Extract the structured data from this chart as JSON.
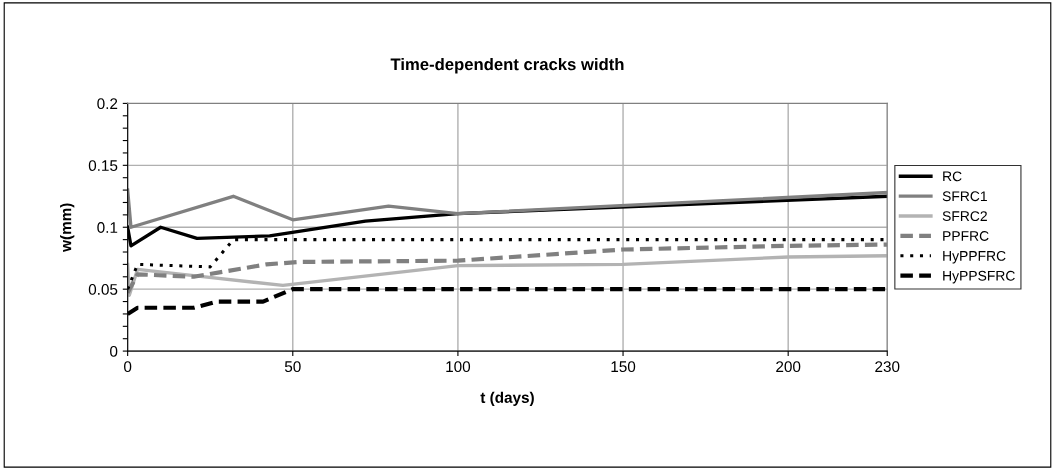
{
  "chart_data": {
    "type": "line",
    "title": "Time-dependent cracks width",
    "xlabel": "t (days)",
    "ylabel": "w(mm)",
    "xlim": [
      0,
      230
    ],
    "xticks": [
      0,
      50,
      100,
      150,
      200,
      230
    ],
    "ylim": [
      0,
      0.2
    ],
    "yticks": [
      0,
      {
        "value": 0.01,
        "label": null
      },
      {
        "value": 0.02,
        "label": null
      },
      {
        "value": 0.03,
        "label": null
      },
      {
        "value": 0.04,
        "label": null
      },
      0.05,
      {
        "value": 0.06,
        "label": null
      },
      {
        "value": 0.07,
        "label": null
      },
      {
        "value": 0.08,
        "label": null
      },
      {
        "value": 0.09,
        "label": null
      },
      0.1,
      {
        "value": 0.11,
        "label": null
      },
      {
        "value": 0.12,
        "label": null
      },
      {
        "value": 0.13,
        "label": null
      },
      {
        "value": 0.14,
        "label": null
      },
      0.15,
      {
        "value": 0.16,
        "label": null
      },
      {
        "value": 0.17,
        "label": null
      },
      {
        "value": 0.18,
        "label": null
      },
      {
        "value": 0.19,
        "label": null
      },
      0.2
    ],
    "grid": true,
    "legend": "right",
    "marker": "none",
    "series": [
      {
        "name": "RC",
        "color": "#000000",
        "line_style": "solid",
        "x": [
          0,
          1,
          10,
          21,
          43,
          72,
          100,
          230
        ],
        "values": [
          0.1,
          0.085,
          0.1,
          0.091,
          0.093,
          0.105,
          0.111,
          0.125
        ]
      },
      {
        "name": "SFRC1",
        "color": "#808080",
        "line_style": "solid",
        "x": [
          0,
          1,
          32,
          50,
          79,
          100,
          230
        ],
        "values": [
          0.13,
          0.1,
          0.125,
          0.106,
          0.117,
          0.111,
          0.128
        ]
      },
      {
        "name": "SFRC2",
        "color": "#b3b3b3",
        "line_style": "solid",
        "x": [
          0,
          0.5,
          3,
          20,
          47,
          100,
          150,
          200,
          230
        ],
        "values": [
          0.07,
          0.045,
          0.066,
          0.061,
          0.053,
          0.069,
          0.07,
          0.076,
          0.077
        ]
      },
      {
        "name": "PPFRC",
        "color": "#808080",
        "line_style": "dashed",
        "x": [
          0,
          3,
          20,
          42,
          52,
          100,
          150,
          200,
          230
        ],
        "values": [
          0.047,
          0.062,
          0.06,
          0.07,
          0.072,
          0.073,
          0.082,
          0.085,
          0.086
        ]
      },
      {
        "name": "HyPPFRC",
        "color": "#000000",
        "line_style": "dotted",
        "x": [
          0,
          3,
          25,
          32,
          230
        ],
        "values": [
          0.05,
          0.07,
          0.068,
          0.09,
          0.09
        ]
      },
      {
        "name": "HyPPSFRC",
        "color": "#000000",
        "line_style": "dashed",
        "x": [
          0,
          3,
          20,
          27,
          41,
          50,
          230
        ],
        "values": [
          0.03,
          0.035,
          0.035,
          0.04,
          0.04,
          0.05,
          0.05
        ]
      }
    ]
  }
}
